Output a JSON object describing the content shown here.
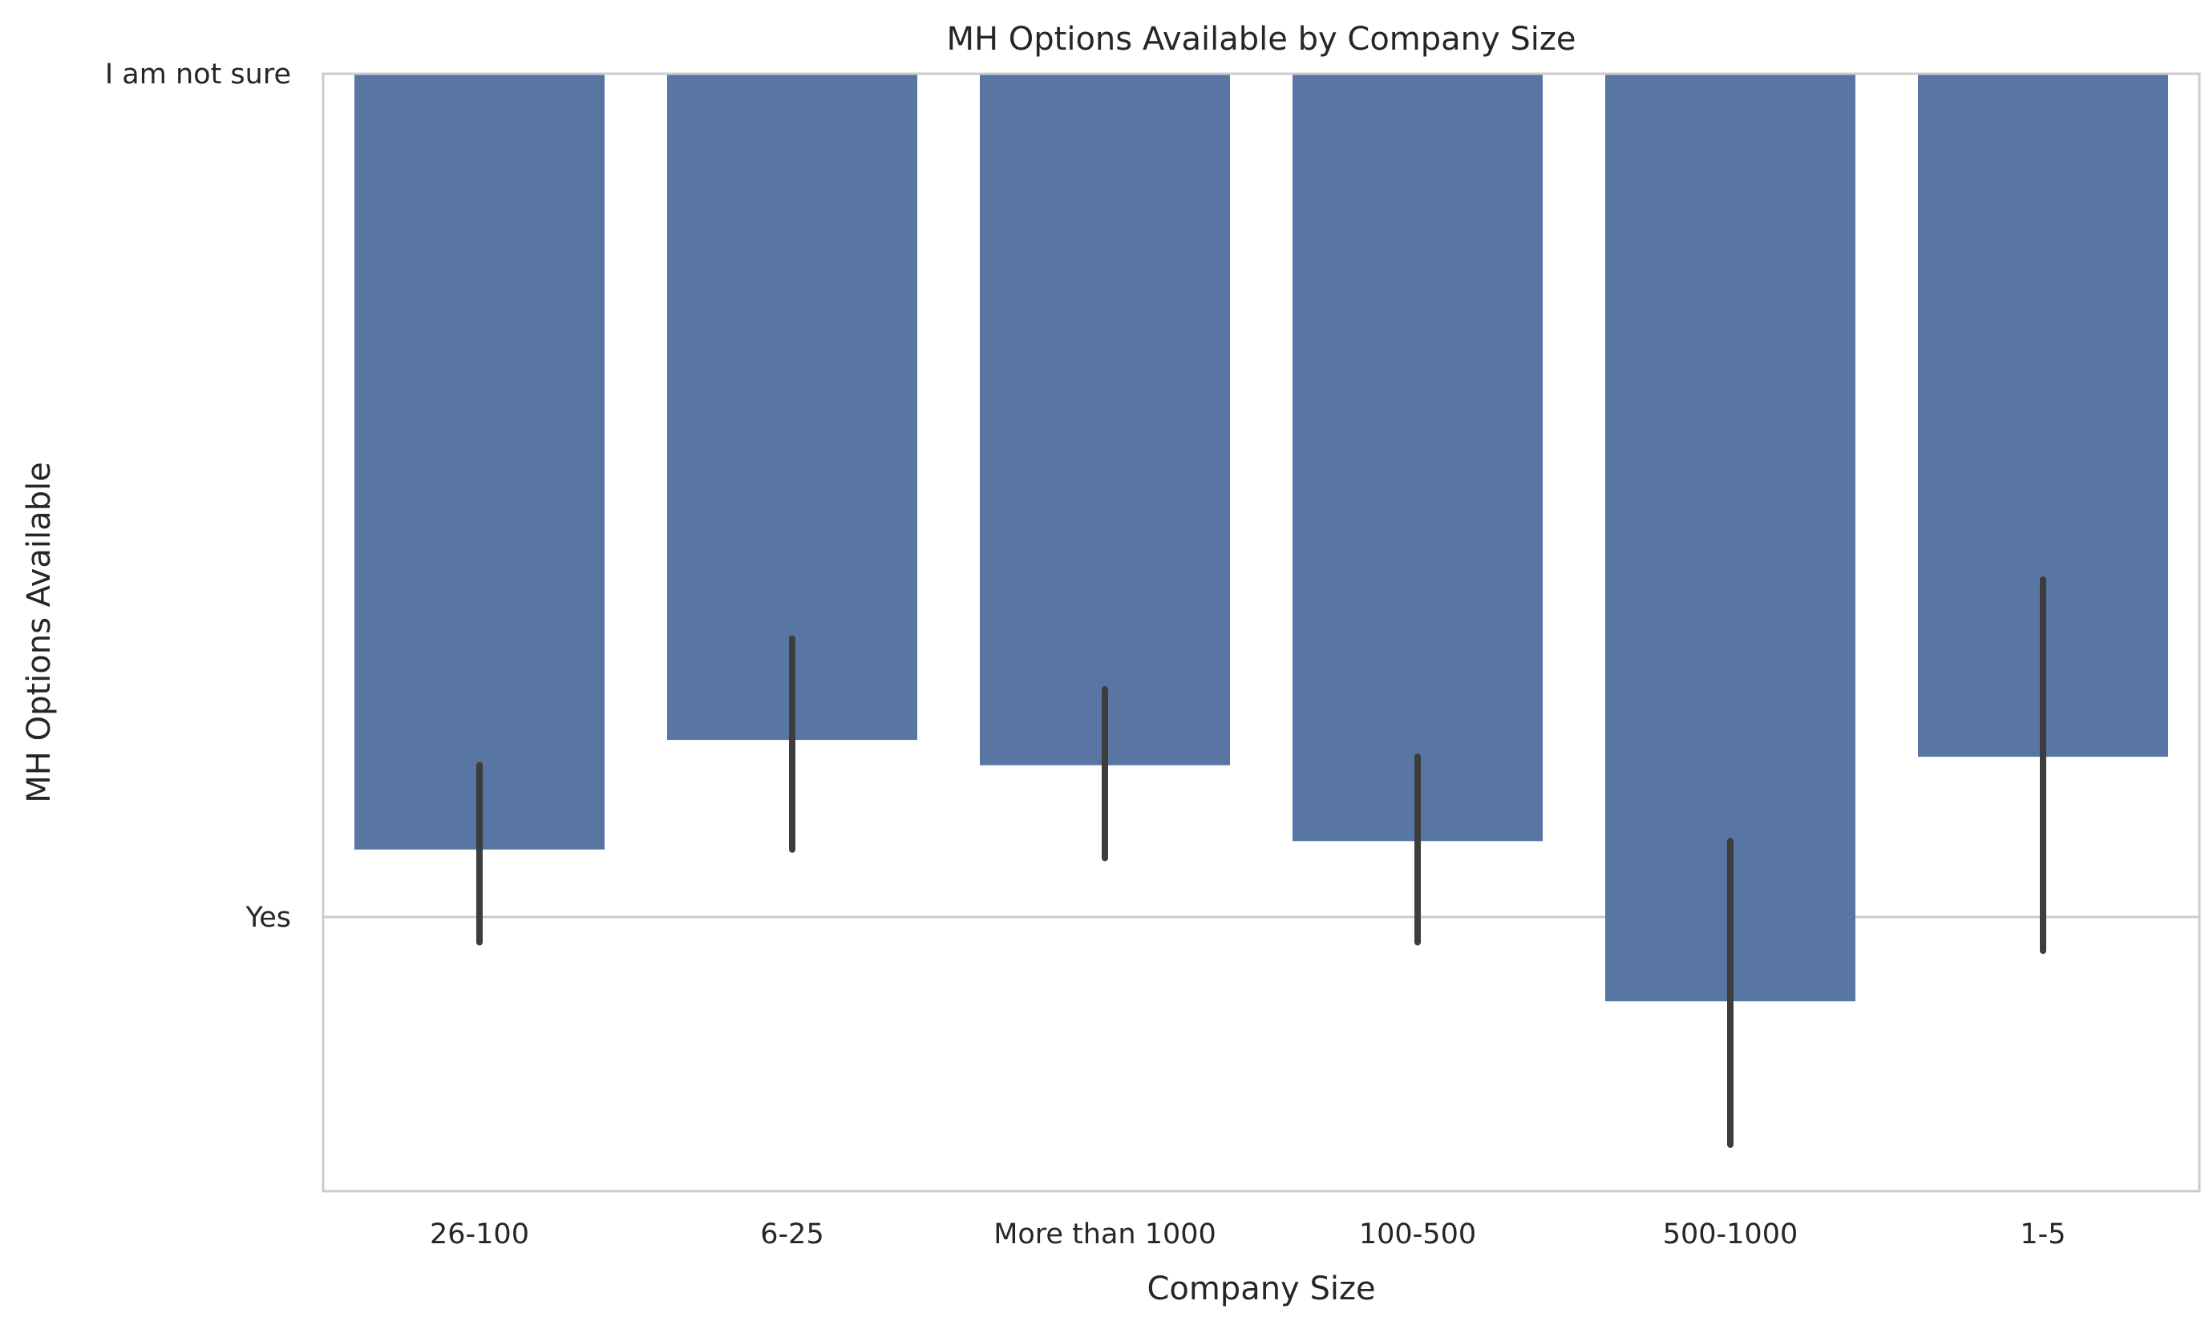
{
  "chart_data": {
    "type": "bar",
    "title": "MH Options Available by Company Size",
    "xlabel": "Company Size",
    "ylabel": "MH Options Available",
    "categories": [
      "26-100",
      "6-25",
      "More than 1000",
      "100-500",
      "500-1000",
      "1-5"
    ],
    "y_ticks": [
      {
        "label": "I am not sure",
        "value": 0
      },
      {
        "label": "Yes",
        "value": 1
      }
    ],
    "y_axis_inverted": true,
    "ylim": [
      0,
      1.32
    ],
    "values": [
      0.92,
      0.79,
      0.82,
      0.91,
      1.1,
      0.81
    ],
    "error_bars": [
      [
        0.82,
        1.03
      ],
      [
        0.67,
        0.92
      ],
      [
        0.73,
        0.93
      ],
      [
        0.81,
        1.03
      ],
      [
        0.91,
        1.27
      ],
      [
        0.6,
        1.04
      ]
    ],
    "grid": "horizontal",
    "colors": {
      "bar": "#5875a4",
      "error_bar": "#3d3d3d",
      "grid": "#cccccc",
      "spine": "#cccccc",
      "text": "#262626"
    }
  }
}
